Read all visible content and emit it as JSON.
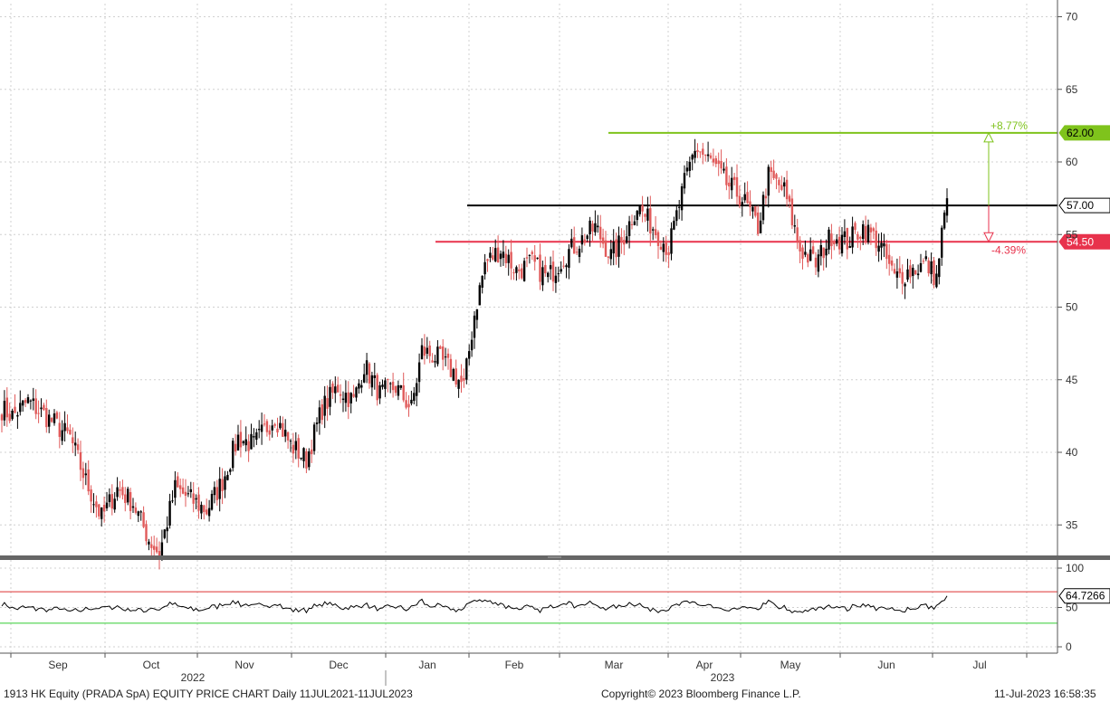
{
  "footer": {
    "left": "1913 HK Equity (PRADA SpA) EQUITY PRICE CHART  Daily 11JUL2021-11JUL2023",
    "center": "Copyright© 2023 Bloomberg Finance L.P.",
    "right": "11-Jul-2023 16:58:35"
  },
  "chart_data": [
    {
      "type": "candlestick",
      "title": "",
      "ylim": [
        32,
        71
      ],
      "y_ticks": [
        35,
        40,
        45,
        50,
        55,
        60,
        65,
        70
      ],
      "x_months": [
        "Sep",
        "Oct",
        "Nov",
        "Dec",
        "Jan",
        "Feb",
        "Mar",
        "Apr",
        "May",
        "Jun",
        "Jul"
      ],
      "x_years": [
        "2022",
        "2023"
      ],
      "grid": true,
      "colors": {
        "up": "#000000",
        "down": "#e05a5a",
        "resistance": "#7fc31c",
        "support": "#e8324c",
        "last": "#000000"
      },
      "series_anchors": [
        [
          0,
          43
        ],
        [
          4,
          42.5
        ],
        [
          10,
          43.5
        ],
        [
          20,
          42
        ],
        [
          26,
          41
        ],
        [
          32,
          38
        ],
        [
          38,
          35.5
        ],
        [
          44,
          37.5
        ],
        [
          50,
          36.5
        ],
        [
          56,
          34
        ],
        [
          60,
          33
        ],
        [
          66,
          37.5
        ],
        [
          70,
          37
        ],
        [
          78,
          36
        ],
        [
          84,
          38
        ],
        [
          90,
          41
        ],
        [
          96,
          40.5
        ],
        [
          104,
          42.5
        ],
        [
          110,
          40.5
        ],
        [
          116,
          39.5
        ],
        [
          122,
          43
        ],
        [
          128,
          44.5
        ],
        [
          134,
          43.5
        ],
        [
          138,
          46
        ],
        [
          144,
          44
        ],
        [
          150,
          44.5
        ],
        [
          156,
          43
        ],
        [
          160,
          47
        ],
        [
          166,
          46.5
        ],
        [
          172,
          45.5
        ],
        [
          176,
          44.5
        ],
        [
          180,
          49.5
        ],
        [
          184,
          53
        ],
        [
          190,
          54
        ],
        [
          196,
          52.5
        ],
        [
          202,
          53
        ],
        [
          208,
          52
        ],
        [
          214,
          53.5
        ],
        [
          220,
          54.5
        ],
        [
          226,
          55.5
        ],
        [
          232,
          53.5
        ],
        [
          236,
          54.5
        ],
        [
          242,
          57
        ],
        [
          248,
          55.5
        ],
        [
          254,
          54
        ],
        [
          260,
          58.5
        ],
        [
          264,
          61
        ],
        [
          270,
          60
        ],
        [
          276,
          58.5
        ],
        [
          282,
          57.5
        ],
        [
          288,
          55.5
        ],
        [
          292,
          59
        ],
        [
          298,
          58
        ],
        [
          304,
          54
        ],
        [
          310,
          53
        ],
        [
          316,
          55
        ],
        [
          322,
          54.5
        ],
        [
          328,
          55.5
        ],
        [
          334,
          54.5
        ],
        [
          340,
          52
        ],
        [
          346,
          52.5
        ],
        [
          352,
          53
        ],
        [
          356,
          52
        ],
        [
          358,
          55
        ],
        [
          360,
          57.5
        ]
      ],
      "horizontal_levels": [
        {
          "value": 62.0,
          "label": "62.00",
          "change_label": "+8.77%"
        },
        {
          "value": 57.0,
          "label": "57.00"
        },
        {
          "value": 54.5,
          "label": "54.50",
          "change_label": "-4.39%"
        }
      ]
    },
    {
      "type": "line",
      "title": "",
      "ylim": [
        -5,
        105
      ],
      "y_ticks": [
        0,
        50,
        100
      ],
      "upper_band": 70,
      "lower_band": 30,
      "last_value_label": "64.7266",
      "x_months": [
        "Sep",
        "Oct",
        "Nov",
        "Dec",
        "Jan",
        "Feb",
        "Mar",
        "Apr",
        "May",
        "Jun",
        "Jul"
      ]
    }
  ]
}
